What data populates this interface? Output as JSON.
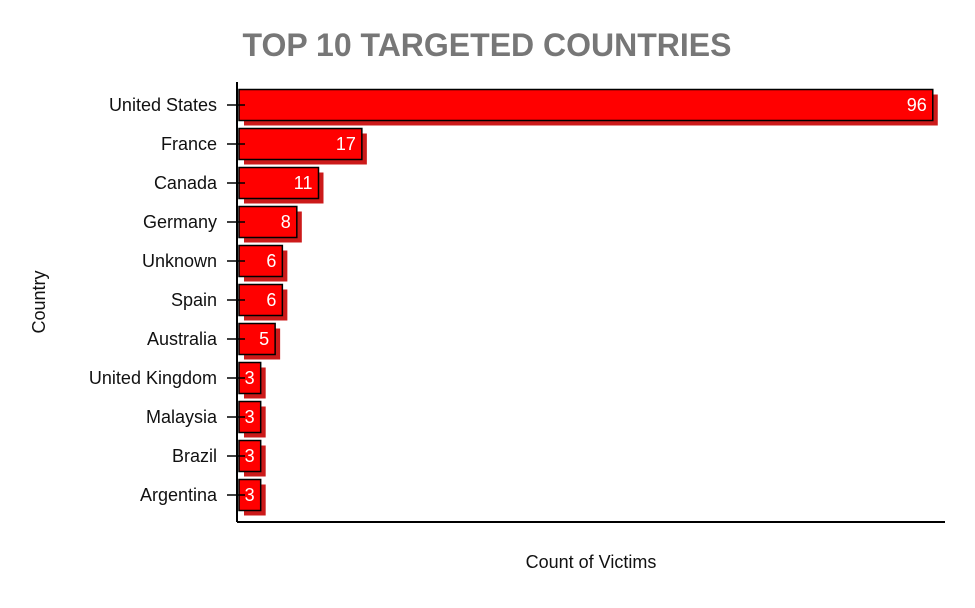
{
  "chart_data": {
    "type": "bar",
    "orientation": "horizontal",
    "title": "TOP 10 TARGETED COUNTRIES",
    "xlabel": "Count of Victims",
    "ylabel": "Country",
    "categories": [
      "United States",
      "France",
      "Canada",
      "Germany",
      "Unknown",
      "Spain",
      "Australia",
      "United Kingdom",
      "Malaysia",
      "Brazil",
      "Argentina"
    ],
    "values": [
      96,
      17,
      11,
      8,
      6,
      6,
      5,
      3,
      3,
      3,
      3
    ],
    "xlim": [
      0,
      97
    ],
    "grid": false,
    "legend": "none",
    "colors": {
      "bar": "#ff0000",
      "bar_shadow": "#cc1a1a",
      "bar_outline": "#000000",
      "title": "#777777",
      "axis": "#000000",
      "data_label": "#ffffff"
    }
  }
}
